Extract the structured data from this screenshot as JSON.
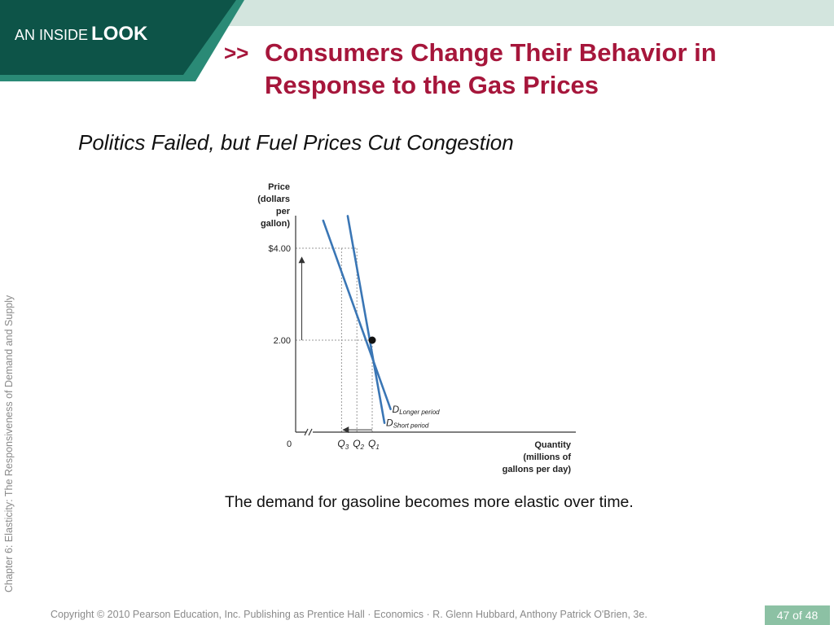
{
  "header": {
    "badge_pre": "AN INSIDE",
    "badge_post": "LOOK",
    "title_arrows": ">>",
    "title": "Consumers Change Their Behavior in Response to the Gas Prices"
  },
  "subtitle": "Politics Failed, but Fuel Prices Cut Congestion",
  "side_text": "Chapter 6:  Elasticity:  The Responsiveness of Demand and Supply",
  "caption": "The demand for gasoline becomes more elastic over time.",
  "footer": {
    "copyright": "Copyright © 2010 Pearson Education, Inc. Publishing as Prentice Hall · Economics · R. Glenn Hubbard, Anthony Patrick O'Brien, 3e.",
    "page": "47 of 48"
  },
  "colors": {
    "banner_dark": "#0d5448",
    "banner_mid": "#2a8a76",
    "banner_light": "#d3e5de",
    "title_red": "#a6163b",
    "curve_blue": "#3a76b5",
    "page_badge": "#8cc1a4"
  },
  "chart_data": {
    "type": "line",
    "ylabel": [
      "Price",
      "(dollars",
      "per",
      "gallon)"
    ],
    "xlabel": [
      "Quantity",
      "(millions of",
      "gallons per day)"
    ],
    "y_ticks": [
      {
        "value": 4.0,
        "label": "$4.00"
      },
      {
        "value": 2.0,
        "label": "2.00"
      }
    ],
    "x_ticks": [
      {
        "value": 0,
        "label": "0",
        "letter": "",
        "sub": ""
      },
      {
        "value": 3,
        "label": "",
        "letter": "Q",
        "sub": "3"
      },
      {
        "value": 4,
        "label": "",
        "letter": "Q",
        "sub": "2"
      },
      {
        "value": 5,
        "label": "",
        "letter": "Q",
        "sub": "1"
      }
    ],
    "x_range": [
      0,
      14
    ],
    "y_range": [
      0,
      5.2
    ],
    "axis_break": true,
    "series": [
      {
        "name_main": "D",
        "name_sub": "Longer period",
        "points": [
          [
            1.8,
            4.6
          ],
          [
            6.2,
            0.5
          ]
        ],
        "line_value": 0.5,
        "label_value": 3.2
      },
      {
        "name_main": "D",
        "name_sub": "Short period",
        "points": [
          [
            3.4,
            4.7
          ],
          [
            5.8,
            0.2
          ]
        ],
        "line_value": 0.2,
        "label_value": 0.2
      }
    ],
    "equilibrium": {
      "x": 5,
      "y": 2.0
    },
    "guides": [
      {
        "from": [
          0,
          4.0
        ],
        "to": [
          4,
          4.0
        ]
      },
      {
        "from": [
          0,
          2.0
        ],
        "to": [
          5,
          2.0
        ]
      },
      {
        "from": [
          3,
          0
        ],
        "to": [
          3,
          4.0
        ]
      },
      {
        "from": [
          4,
          0
        ],
        "to": [
          4,
          4.0
        ]
      },
      {
        "from": [
          5,
          0
        ],
        "to": [
          5,
          2.0
        ]
      }
    ],
    "arrows": [
      {
        "direction": "up",
        "from": [
          0.4,
          2.0
        ],
        "to": [
          0.4,
          3.8
        ]
      },
      {
        "direction": "left",
        "from": [
          5,
          0.05
        ],
        "to": [
          3.1,
          0.05
        ]
      }
    ],
    "grid": false,
    "legend": "inline"
  }
}
